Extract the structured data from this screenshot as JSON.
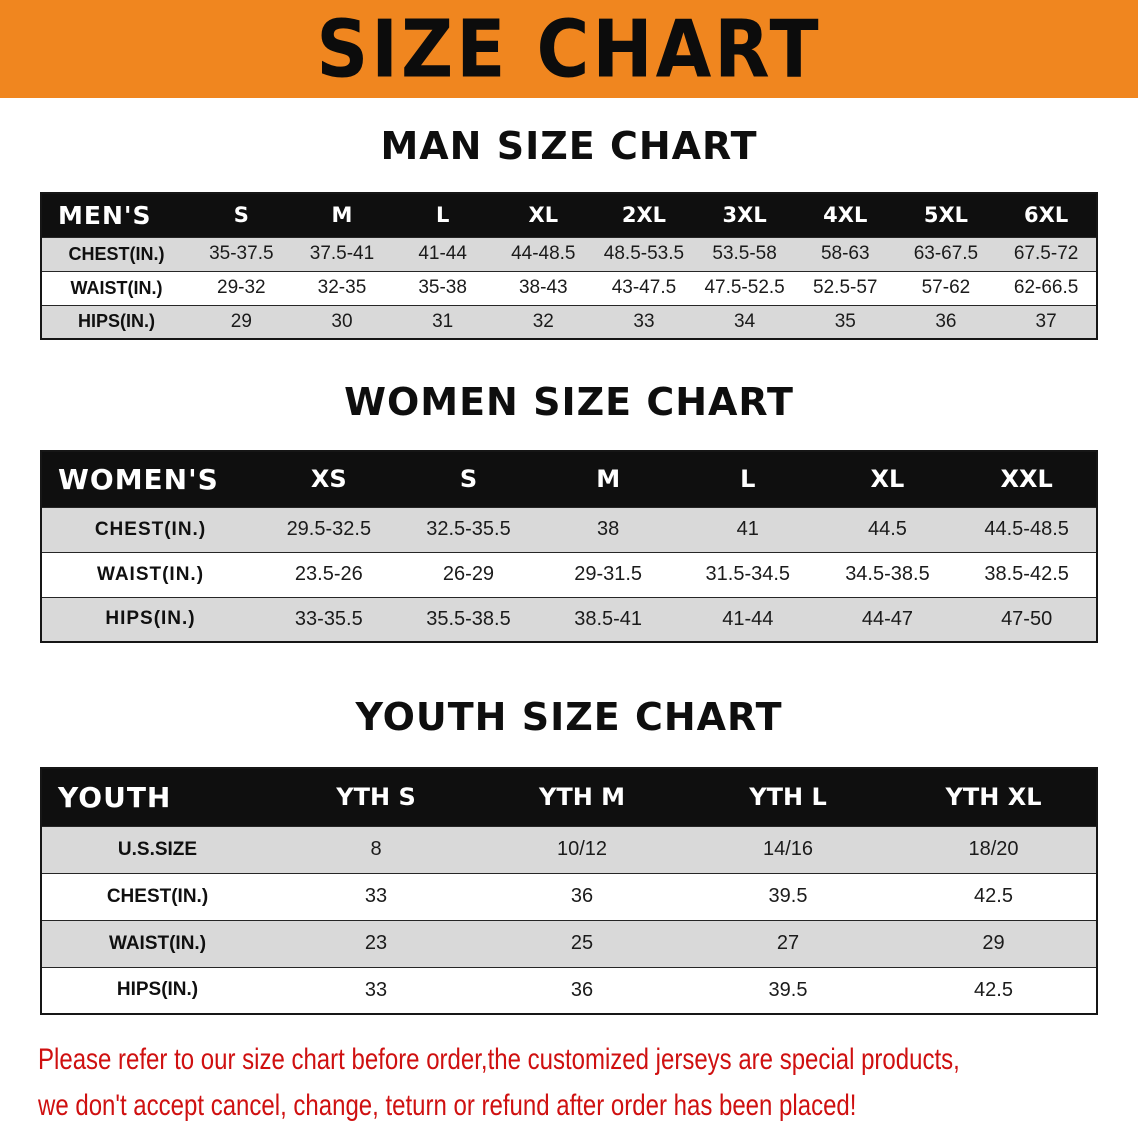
{
  "colors": {
    "banner_bg": "#F0861F",
    "header_bg": "#0F0F0F",
    "row_alt_bg": "#D9D9D9",
    "disclaimer_red": "#CF1010"
  },
  "banner": {
    "title": "SIZE CHART"
  },
  "sections": [
    {
      "heading": "MAN SIZE CHART",
      "header": {
        "label": "MEN'S",
        "columns": [
          "S",
          "M",
          "L",
          "XL",
          "2XL",
          "3XL",
          "4XL",
          "5XL",
          "6XL"
        ]
      },
      "rows": [
        {
          "label": "CHEST(IN.)",
          "values": [
            "35-37.5",
            "37.5-41",
            "41-44",
            "44-48.5",
            "48.5-53.5",
            "53.5-58",
            "58-63",
            "63-67.5",
            "67.5-72"
          ]
        },
        {
          "label": "WAIST(IN.)",
          "values": [
            "29-32",
            "32-35",
            "35-38",
            "38-43",
            "43-47.5",
            "47.5-52.5",
            "52.5-57",
            "57-62",
            "62-66.5"
          ]
        },
        {
          "label": "HIPS(IN.)",
          "values": [
            "29",
            "30",
            "31",
            "32",
            "33",
            "34",
            "35",
            "36",
            "37"
          ]
        }
      ]
    },
    {
      "heading": "WOMEN SIZE CHART",
      "header": {
        "label": "WOMEN'S",
        "columns": [
          "XS",
          "S",
          "M",
          "L",
          "XL",
          "XXL"
        ]
      },
      "rows": [
        {
          "label": "CHEST(IN.)",
          "values": [
            "29.5-32.5",
            "32.5-35.5",
            "38",
            "41",
            "44.5",
            "44.5-48.5"
          ]
        },
        {
          "label": "WAIST(IN.)",
          "values": [
            "23.5-26",
            "26-29",
            "29-31.5",
            "31.5-34.5",
            "34.5-38.5",
            "38.5-42.5"
          ]
        },
        {
          "label": "HIPS(IN.)",
          "values": [
            "33-35.5",
            "35.5-38.5",
            "38.5-41",
            "41-44",
            "44-47",
            "47-50"
          ]
        }
      ]
    },
    {
      "heading": "YOUTH SIZE CHART",
      "header": {
        "label": "YOUTH",
        "columns": [
          "YTH S",
          "YTH M",
          "YTH L",
          "YTH XL"
        ]
      },
      "rows": [
        {
          "label": "U.S.SIZE",
          "values": [
            "8",
            "10/12",
            "14/16",
            "18/20"
          ]
        },
        {
          "label": "CHEST(IN.)",
          "values": [
            "33",
            "36",
            "39.5",
            "42.5"
          ]
        },
        {
          "label": "WAIST(IN.)",
          "values": [
            "23",
            "25",
            "27",
            "29"
          ]
        },
        {
          "label": "HIPS(IN.)",
          "values": [
            "33",
            "36",
            "39.5",
            "42.5"
          ]
        }
      ]
    }
  ],
  "disclaimer": {
    "line1": "Please refer to our size chart before order,the customized jerseys are special products,",
    "line2": "we don't accept cancel, change, teturn or refund after order has been placed!"
  }
}
